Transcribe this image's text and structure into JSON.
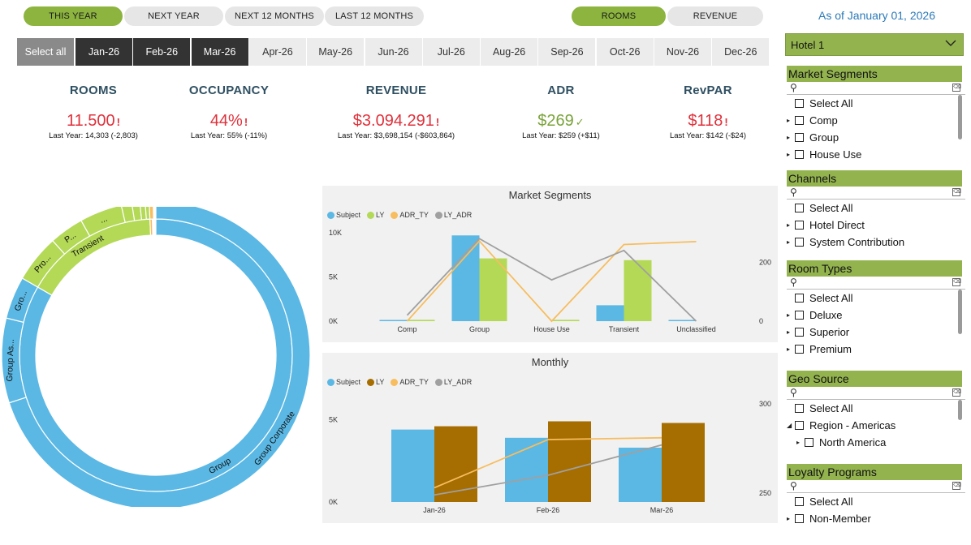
{
  "periods": [
    "THIS YEAR",
    "NEXT YEAR",
    "NEXT 12 MONTHS",
    "LAST 12 MONTHS"
  ],
  "metric_toggle": [
    "ROOMS",
    "REVENUE"
  ],
  "as_of": "As of January 01, 2026",
  "months": {
    "select_all": "Select all",
    "items": [
      "Jan-26",
      "Feb-26",
      "Mar-26",
      "Apr-26",
      "May-26",
      "Jun-26",
      "Jul-26",
      "Aug-26",
      "Sep-26",
      "Oct-26",
      "Nov-26",
      "Dec-26"
    ]
  },
  "kpis": [
    {
      "title": "ROOMS",
      "value": "11.500",
      "mark": "!",
      "last_year": "Last Year: 14,303 (-2,803)"
    },
    {
      "title": "OCCUPANCY",
      "value": "44%",
      "mark": "!",
      "last_year": "Last Year: 55% (-11%)"
    },
    {
      "title": "REVENUE",
      "value": "$3.094.291",
      "mark": "!",
      "last_year": "Last Year: $3,698,154 (-$603,864)"
    },
    {
      "title": "ADR",
      "value": "$269",
      "mark": "✓",
      "last_year": "Last Year: $259 (+$11)"
    },
    {
      "title": "RevPAR",
      "value": "$118",
      "mark": "!",
      "last_year": "Last Year: $142 (-$24)"
    }
  ],
  "colors": {
    "subject": "#5bb8e4",
    "ly_green": "#b3d957",
    "ly_brown": "#a66d00",
    "adr_ty": "#f7bd5e",
    "ly_adr": "#a0a0a0",
    "accent": "#8cb43f"
  },
  "donut": {
    "inner_labels": [
      "Group",
      "Transient"
    ],
    "outer_labels": [
      "Group Corporate",
      "Group As...",
      "Gro...",
      "Pro...",
      "P...",
      "..."
    ]
  },
  "chart_data": [
    {
      "type": "bar",
      "title": "Market Segments",
      "categories": [
        "Comp",
        "Group",
        "House Use",
        "Transient",
        "Unclassified"
      ],
      "legend": [
        "Subject",
        "LY",
        "ADR_TY",
        "LY_ADR"
      ],
      "y_ticks": [
        "10K",
        "5K",
        "0K"
      ],
      "y2_ticks": [
        "200",
        "0"
      ],
      "ylim": [
        0,
        10000
      ],
      "y2lim": [
        0,
        300
      ],
      "series": [
        {
          "name": "Subject",
          "kind": "bar",
          "values": [
            100,
            9700,
            0,
            1800,
            100
          ]
        },
        {
          "name": "LY",
          "kind": "bar",
          "values": [
            150,
            7100,
            150,
            6900,
            0
          ]
        },
        {
          "name": "ADR_TY",
          "kind": "line",
          "values": [
            0,
            272,
            0,
            260,
            270
          ]
        },
        {
          "name": "LY_ADR",
          "kind": "line",
          "values": [
            20,
            280,
            140,
            240,
            0
          ]
        }
      ]
    },
    {
      "type": "bar",
      "title": "Monthly",
      "categories": [
        "Jan-26",
        "Feb-26",
        "Mar-26"
      ],
      "legend": [
        "Subject",
        "LY",
        "ADR_TY",
        "LY_ADR"
      ],
      "y_ticks": [
        "5K",
        "0K"
      ],
      "y2_ticks": [
        "300",
        "250"
      ],
      "ylim": [
        0,
        6500
      ],
      "y2lim": [
        245,
        305
      ],
      "series": [
        {
          "name": "Subject",
          "kind": "bar",
          "values": [
            4400,
            3900,
            3300
          ]
        },
        {
          "name": "LY",
          "kind": "bar",
          "values": [
            4600,
            4900,
            4800
          ]
        },
        {
          "name": "ADR_TY",
          "kind": "line",
          "values": [
            253,
            280,
            281
          ]
        },
        {
          "name": "LY_ADR",
          "kind": "line",
          "values": [
            249,
            260,
            277
          ]
        }
      ]
    }
  ],
  "hotel_select": "Hotel 1",
  "slicers": [
    {
      "title": "Market Segments",
      "items": [
        {
          "label": "Select All",
          "arrow": ""
        },
        {
          "label": "Comp",
          "arrow": "▸"
        },
        {
          "label": "Group",
          "arrow": "▸"
        },
        {
          "label": "House Use",
          "arrow": "▸"
        }
      ]
    },
    {
      "title": "Channels",
      "items": [
        {
          "label": "Select All",
          "arrow": ""
        },
        {
          "label": "Hotel Direct",
          "arrow": "▸"
        },
        {
          "label": "System Contribution",
          "arrow": "▸"
        }
      ]
    },
    {
      "title": "Room Types",
      "items": [
        {
          "label": "Select All",
          "arrow": ""
        },
        {
          "label": "Deluxe",
          "arrow": "▸"
        },
        {
          "label": "Superior",
          "arrow": "▸"
        },
        {
          "label": "Premium",
          "arrow": "▸"
        }
      ]
    },
    {
      "title": "Geo Source",
      "items": [
        {
          "label": "Select All",
          "arrow": ""
        },
        {
          "label": "Region - Americas",
          "arrow": "◢"
        },
        {
          "label": "North America",
          "arrow": "▸"
        }
      ]
    },
    {
      "title": "Loyalty Programs",
      "items": [
        {
          "label": "Select All",
          "arrow": ""
        },
        {
          "label": "Non-Member",
          "arrow": "▸"
        }
      ]
    }
  ]
}
